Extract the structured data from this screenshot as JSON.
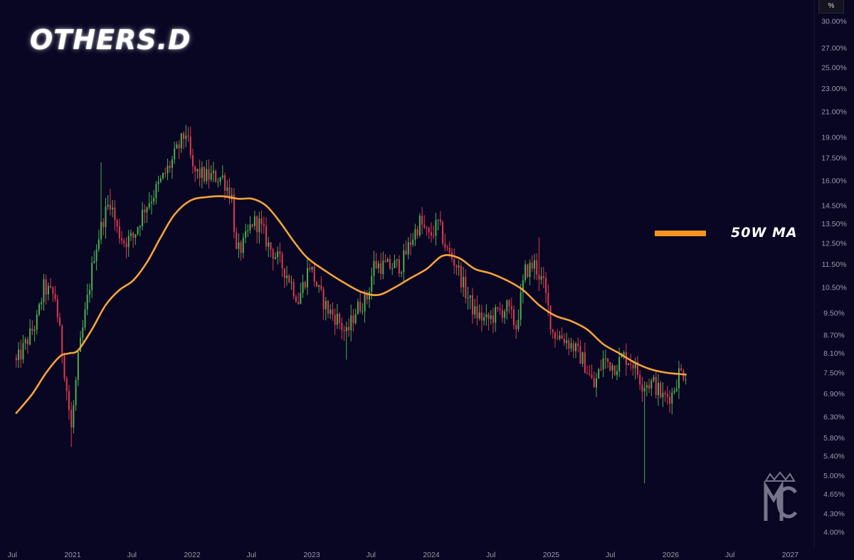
{
  "colors": {
    "background": "#080622",
    "up": "#4caf50",
    "down": "#e0394f",
    "ma": "#f7a23c",
    "axis_text": "#9a9aaa",
    "legend_line": "#f7931e"
  },
  "unit_label": "%",
  "legend": {
    "label": "50W MA"
  },
  "chart_data": {
    "type": "candlestick",
    "title": "OTHERS.D",
    "xlabel": "",
    "ylabel": "",
    "y_scale": "log",
    "ylim": [
      3.9,
      31.0
    ],
    "y_ticks": [
      "30.00%",
      "27.00%",
      "25.00%",
      "23.00%",
      "21.00%",
      "19.00%",
      "17.50%",
      "16.00%",
      "14.50%",
      "13.50%",
      "12.50%",
      "11.50%",
      "10.50%",
      "9.50%",
      "8.70%",
      "8.10%",
      "7.50%",
      "6.90%",
      "6.30%",
      "5.80%",
      "5.40%",
      "5.00%",
      "4.65%",
      "4.30%",
      "4.00%"
    ],
    "x_ticks": [
      "Jul",
      "2021",
      "Jul",
      "2022",
      "Jul",
      "2023",
      "Jul",
      "2024",
      "Jul",
      "2025",
      "Jul",
      "2026",
      "Jul",
      "2027"
    ],
    "legend_position": "right",
    "grid": false,
    "series_ma_name": "50W MA",
    "series": [
      {
        "name": "OTHERS.D",
        "type": "ohlc_weekly",
        "anchors": [
          [
            "2020-07-13",
            7.8
          ],
          [
            "2020-09-14",
            9.2
          ],
          [
            "2020-10-05",
            10.5
          ],
          [
            "2020-11-09",
            10.1
          ],
          [
            "2020-12-07",
            7.6
          ],
          [
            "2020-12-28",
            6.0
          ],
          [
            "2021-01-18",
            7.9
          ],
          [
            "2021-02-15",
            10.0
          ],
          [
            "2021-03-08",
            12.0
          ],
          [
            "2021-04-05",
            13.8
          ],
          [
            "2021-04-26",
            14.8
          ],
          [
            "2021-05-17",
            13.2
          ],
          [
            "2021-06-07",
            12.6
          ],
          [
            "2021-07-05",
            12.8
          ],
          [
            "2021-08-09",
            14.4
          ],
          [
            "2021-09-06",
            15.2
          ],
          [
            "2021-10-04",
            16.2
          ],
          [
            "2021-11-01",
            17.3
          ],
          [
            "2021-12-13",
            19.4
          ],
          [
            "2022-01-03",
            16.6
          ],
          [
            "2022-02-07",
            16.3
          ],
          [
            "2022-04-04",
            16.2
          ],
          [
            "2022-05-02",
            15.0
          ],
          [
            "2022-05-16",
            12.0
          ],
          [
            "2022-06-06",
            12.4
          ],
          [
            "2022-07-04",
            13.6
          ],
          [
            "2022-07-25",
            13.5
          ],
          [
            "2022-08-22",
            12.4
          ],
          [
            "2022-09-26",
            11.6
          ],
          [
            "2022-10-24",
            10.9
          ],
          [
            "2022-11-21",
            10.0
          ],
          [
            "2022-12-26",
            11.5
          ],
          [
            "2023-01-23",
            10.3
          ],
          [
            "2023-02-20",
            9.6
          ],
          [
            "2023-03-20",
            9.3
          ],
          [
            "2023-04-17",
            8.7
          ],
          [
            "2023-05-15",
            9.6
          ],
          [
            "2023-06-19",
            10.1
          ],
          [
            "2023-07-10",
            11.5
          ],
          [
            "2023-08-21",
            11.4
          ],
          [
            "2023-10-02",
            11.5
          ],
          [
            "2023-10-30",
            12.6
          ],
          [
            "2023-11-27",
            13.6
          ],
          [
            "2023-12-25",
            12.8
          ],
          [
            "2024-01-22",
            13.5
          ],
          [
            "2024-02-19",
            12.1
          ],
          [
            "2024-03-18",
            11.5
          ],
          [
            "2024-04-15",
            10.3
          ],
          [
            "2024-05-13",
            9.5
          ],
          [
            "2024-06-17",
            9.2
          ],
          [
            "2024-07-22",
            9.5
          ],
          [
            "2024-08-19",
            9.7
          ],
          [
            "2024-09-16",
            9.0
          ],
          [
            "2024-10-14",
            11.2
          ],
          [
            "2024-11-11",
            11.5
          ],
          [
            "2024-12-09",
            10.6
          ],
          [
            "2025-01-06",
            8.8
          ],
          [
            "2025-02-10",
            8.6
          ],
          [
            "2025-03-10",
            8.3
          ],
          [
            "2025-04-07",
            7.9
          ],
          [
            "2025-05-12",
            7.1
          ],
          [
            "2025-06-09",
            7.9
          ],
          [
            "2025-07-14",
            7.7
          ],
          [
            "2025-08-11",
            8.0
          ],
          [
            "2025-09-08",
            7.8
          ],
          [
            "2025-10-06",
            7.2
          ],
          [
            "2025-11-10",
            7.2
          ],
          [
            "2025-12-08",
            6.8
          ],
          [
            "2026-01-05",
            6.9
          ],
          [
            "2026-01-26",
            7.5
          ],
          [
            "2026-02-16",
            7.5
          ]
        ]
      },
      {
        "name": "50W MA",
        "type": "line",
        "points": [
          [
            "2020-07-13",
            6.4
          ],
          [
            "2020-08-31",
            6.9
          ],
          [
            "2020-10-12",
            7.5
          ],
          [
            "2020-11-23",
            8.0
          ],
          [
            "2020-12-21",
            8.1
          ],
          [
            "2021-01-18",
            8.2
          ],
          [
            "2021-03-01",
            8.9
          ],
          [
            "2021-04-12",
            9.8
          ],
          [
            "2021-05-24",
            10.4
          ],
          [
            "2021-07-05",
            10.8
          ],
          [
            "2021-08-16",
            11.6
          ],
          [
            "2021-09-27",
            12.8
          ],
          [
            "2021-11-08",
            14.0
          ],
          [
            "2021-12-27",
            14.8
          ],
          [
            "2022-02-14",
            15.0
          ],
          [
            "2022-04-04",
            15.05
          ],
          [
            "2022-05-23",
            14.9
          ],
          [
            "2022-07-04",
            14.9
          ],
          [
            "2022-08-15",
            14.5
          ],
          [
            "2022-09-26",
            13.6
          ],
          [
            "2022-11-07",
            12.6
          ],
          [
            "2022-12-19",
            11.8
          ],
          [
            "2023-02-13",
            11.2
          ],
          [
            "2023-04-10",
            10.7
          ],
          [
            "2023-06-05",
            10.3
          ],
          [
            "2023-07-24",
            10.2
          ],
          [
            "2023-09-11",
            10.5
          ],
          [
            "2023-10-30",
            10.9
          ],
          [
            "2023-12-18",
            11.3
          ],
          [
            "2024-02-05",
            11.9
          ],
          [
            "2024-03-25",
            11.8
          ],
          [
            "2024-05-13",
            11.3
          ],
          [
            "2024-07-01",
            11.1
          ],
          [
            "2024-08-19",
            10.8
          ],
          [
            "2024-10-07",
            10.4
          ],
          [
            "2024-11-25",
            9.8
          ],
          [
            "2025-01-13",
            9.4
          ],
          [
            "2025-03-03",
            9.2
          ],
          [
            "2025-04-21",
            8.9
          ],
          [
            "2025-06-09",
            8.4
          ],
          [
            "2025-07-28",
            8.1
          ],
          [
            "2025-09-15",
            7.8
          ],
          [
            "2025-11-03",
            7.6
          ],
          [
            "2025-12-22",
            7.5
          ],
          [
            "2026-02-16",
            7.45
          ]
        ]
      }
    ]
  }
}
